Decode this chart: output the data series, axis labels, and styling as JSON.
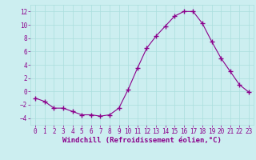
{
  "x": [
    0,
    1,
    2,
    3,
    4,
    5,
    6,
    7,
    8,
    9,
    10,
    11,
    12,
    13,
    14,
    15,
    16,
    17,
    18,
    19,
    20,
    21,
    22,
    23
  ],
  "y": [
    -1.0,
    -1.5,
    -2.5,
    -2.5,
    -3.0,
    -3.5,
    -3.5,
    -3.7,
    -3.5,
    -2.5,
    0.3,
    3.5,
    6.5,
    8.3,
    9.8,
    11.3,
    12.0,
    12.0,
    10.2,
    7.5,
    5.0,
    3.0,
    1.0,
    -0.1
  ],
  "line_color": "#8B008B",
  "marker": "+",
  "marker_size": 4,
  "bg_color": "#cceef0",
  "grid_color": "#aadddd",
  "xlabel": "Windchill (Refroidissement éolien,°C)",
  "xlabel_color": "#8B008B",
  "ylim": [
    -5,
    13
  ],
  "xlim": [
    -0.5,
    23.5
  ],
  "yticks": [
    -4,
    -2,
    0,
    2,
    4,
    6,
    8,
    10,
    12
  ],
  "xticks": [
    0,
    1,
    2,
    3,
    4,
    5,
    6,
    7,
    8,
    9,
    10,
    11,
    12,
    13,
    14,
    15,
    16,
    17,
    18,
    19,
    20,
    21,
    22,
    23
  ],
  "tick_color": "#8B008B",
  "tick_fontsize": 5.5,
  "xlabel_fontsize": 6.5
}
